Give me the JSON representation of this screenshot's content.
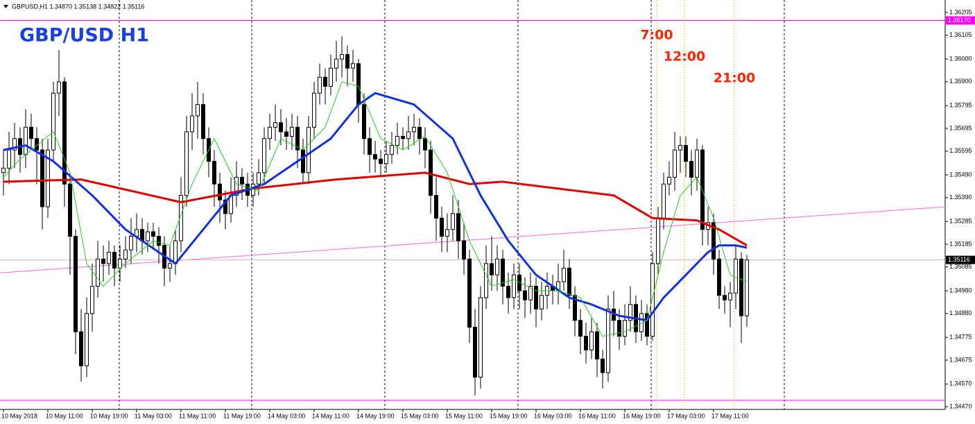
{
  "chart_data": {
    "type": "candlestick",
    "header": "GBPUSD,H1  1.34870 1.35138 1.34822 1.35116",
    "title": "GBP/USD H1",
    "categories": [
      "10 May 2018",
      null,
      null,
      null,
      null,
      null,
      null,
      null,
      "10 May 11:00",
      null,
      null,
      null,
      null,
      null,
      null,
      null,
      "10 May 19:00",
      null,
      null,
      null,
      null,
      null,
      null,
      null,
      "11 May 03:00",
      null,
      null,
      null,
      null,
      null,
      null,
      null,
      "11 May 11:00",
      null,
      null,
      null,
      null,
      null,
      null,
      null,
      "11 May 19:00",
      null,
      null,
      null,
      null,
      null,
      null,
      null,
      "14 May 03:00",
      null,
      null,
      null,
      null,
      null,
      null,
      null,
      "14 May 11:00",
      null,
      null,
      null,
      null,
      null,
      null,
      null,
      "14 May 19:00",
      null,
      null,
      null,
      null,
      null,
      null,
      null,
      "15 May 03:00",
      null,
      null,
      null,
      null,
      null,
      null,
      null,
      "15 May 11:00",
      null,
      null,
      null,
      null,
      null,
      null,
      null,
      "15 May 19:00",
      null,
      null,
      null,
      null,
      null,
      null,
      null,
      "16 May 03:00",
      null,
      null,
      null,
      null,
      null,
      null,
      null,
      "16 May 11:00",
      null,
      null,
      null,
      null,
      null,
      null,
      null,
      "16 May 19:00",
      null,
      null,
      null,
      null,
      null,
      null,
      null,
      "17 May 03:00",
      null,
      null,
      null,
      null,
      null,
      null,
      null,
      "17 May 11:00",
      null,
      null,
      null,
      null,
      null,
      null
    ],
    "open": [
      1.355,
      1.3552,
      1.356,
      1.3565,
      1.3558,
      1.357,
      1.3565,
      1.356,
      1.3535,
      1.356,
      1.3585,
      1.359,
      1.3545,
      1.3522,
      1.348,
      1.3465,
      1.3488,
      1.35,
      1.3512,
      1.351,
      1.3515,
      1.3508,
      1.3512,
      1.3516,
      1.3522,
      1.3525,
      1.352,
      1.3524,
      1.3522,
      1.3518,
      1.3508,
      1.351,
      1.352,
      1.354,
      1.3568,
      1.3575,
      1.358,
      1.3565,
      1.3555,
      1.3545,
      1.3538,
      1.3532,
      1.354,
      1.3548,
      1.3545,
      1.354,
      1.3545,
      1.355,
      1.3565,
      1.357,
      1.3572,
      1.3568,
      1.3566,
      1.357,
      1.356,
      1.355,
      1.357,
      1.3585,
      1.3592,
      1.3588,
      1.3596,
      1.36,
      1.3602,
      1.3596,
      1.3598,
      1.358,
      1.3565,
      1.3558,
      1.3556,
      1.3554,
      1.3558,
      1.3562,
      1.3566,
      1.3565,
      1.3568,
      1.357,
      1.3565,
      1.356,
      1.354,
      1.353,
      1.3522,
      1.3525,
      1.3532,
      1.352,
      1.3512,
      1.3482,
      1.346,
      1.3495,
      1.351,
      1.3505,
      1.3512,
      1.35,
      1.3495,
      1.3505,
      1.3498,
      1.3494,
      1.35,
      1.349,
      1.3496,
      1.35,
      1.3498,
      1.3502,
      1.3508,
      1.3496,
      1.3485,
      1.3478,
      1.3472,
      1.348,
      1.3468,
      1.3462,
      1.349,
      1.3485,
      1.3478,
      1.3485,
      1.3492,
      1.348,
      1.3488,
      1.3478,
      1.351,
      1.353,
      1.3545,
      1.3548,
      1.356,
      1.3562,
      1.3555,
      1.3548,
      1.356,
      1.3525,
      1.3528,
      1.3512,
      1.3496,
      1.3494,
      1.3497,
      1.3512,
      1.3487
    ],
    "high": [
      1.356,
      1.3568,
      1.3572,
      1.357,
      1.3578,
      1.3576,
      1.357,
      1.3565,
      1.3565,
      1.359,
      1.3604,
      1.3592,
      1.355,
      1.3525,
      1.349,
      1.3495,
      1.351,
      1.352,
      1.3518,
      1.352,
      1.3518,
      1.3518,
      1.3522,
      1.353,
      1.3532,
      1.353,
      1.3528,
      1.3528,
      1.3526,
      1.3522,
      1.3518,
      1.3525,
      1.3548,
      1.3575,
      1.3585,
      1.359,
      1.3585,
      1.357,
      1.356,
      1.355,
      1.3542,
      1.3548,
      1.3555,
      1.3552,
      1.355,
      1.355,
      1.3556,
      1.357,
      1.3576,
      1.358,
      1.3578,
      1.3574,
      1.3576,
      1.3575,
      1.3565,
      1.3575,
      1.359,
      1.3598,
      1.3596,
      1.3602,
      1.3608,
      1.361,
      1.3606,
      1.3604,
      1.36,
      1.3585,
      1.357,
      1.3564,
      1.356,
      1.3564,
      1.3568,
      1.3572,
      1.357,
      1.3575,
      1.3576,
      1.3574,
      1.357,
      1.3564,
      1.3548,
      1.3535,
      1.3532,
      1.354,
      1.3538,
      1.3528,
      1.3516,
      1.349,
      1.35,
      1.3518,
      1.3522,
      1.3518,
      1.3516,
      1.3506,
      1.351,
      1.351,
      1.3504,
      1.3506,
      1.3504,
      1.3502,
      1.3506,
      1.3505,
      1.351,
      1.3516,
      1.3512,
      1.35,
      1.349,
      1.3484,
      1.3486,
      1.3484,
      1.3472,
      1.3496,
      1.3498,
      1.349,
      1.3492,
      1.35,
      1.3496,
      1.3494,
      1.3492,
      1.3515,
      1.3535,
      1.355,
      1.3555,
      1.3568,
      1.3566,
      1.3566,
      1.356,
      1.3565,
      1.3562,
      1.3535,
      1.3532,
      1.3516,
      1.35,
      1.3502,
      1.3518,
      1.3515,
      1.35138
    ],
    "low": [
      1.354,
      1.3545,
      1.3552,
      1.355,
      1.3552,
      1.356,
      1.3545,
      1.3525,
      1.353,
      1.3555,
      1.3575,
      1.3535,
      1.3505,
      1.347,
      1.3458,
      1.346,
      1.348,
      1.3495,
      1.3502,
      1.3505,
      1.35,
      1.3502,
      1.3508,
      1.351,
      1.3515,
      1.3514,
      1.3515,
      1.3516,
      1.351,
      1.35,
      1.3502,
      1.3505,
      1.3515,
      1.3535,
      1.356,
      1.3565,
      1.3558,
      1.3548,
      1.3535,
      1.3528,
      1.3525,
      1.3528,
      1.3535,
      1.3538,
      1.3535,
      1.3535,
      1.354,
      1.3545,
      1.356,
      1.3564,
      1.3562,
      1.356,
      1.356,
      1.3552,
      1.3545,
      1.3545,
      1.3565,
      1.358,
      1.358,
      1.3584,
      1.359,
      1.3592,
      1.3588,
      1.359,
      1.3572,
      1.3558,
      1.355,
      1.355,
      1.3548,
      1.355,
      1.3554,
      1.3558,
      1.356,
      1.356,
      1.3562,
      1.3558,
      1.3552,
      1.3532,
      1.352,
      1.3515,
      1.3515,
      1.352,
      1.3512,
      1.3505,
      1.3475,
      1.3452,
      1.3455,
      1.349,
      1.3498,
      1.3498,
      1.3492,
      1.3488,
      1.349,
      1.349,
      1.3486,
      1.3488,
      1.3482,
      1.3485,
      1.349,
      1.3492,
      1.3492,
      1.3498,
      1.349,
      1.3478,
      1.347,
      1.3466,
      1.3468,
      1.346,
      1.3455,
      1.3458,
      1.3478,
      1.3472,
      1.3474,
      1.348,
      1.3475,
      1.3476,
      1.3474,
      1.3476,
      1.3505,
      1.3525,
      1.354,
      1.3542,
      1.355,
      1.3548,
      1.354,
      1.3542,
      1.3518,
      1.3518,
      1.3505,
      1.349,
      1.3488,
      1.3482,
      1.349,
      1.3475,
      1.34822
    ],
    "close": [
      1.3552,
      1.356,
      1.3565,
      1.3558,
      1.357,
      1.3565,
      1.356,
      1.3535,
      1.356,
      1.3585,
      1.359,
      1.3545,
      1.3522,
      1.348,
      1.3465,
      1.3488,
      1.35,
      1.3512,
      1.351,
      1.3515,
      1.3508,
      1.3512,
      1.3516,
      1.3522,
      1.3525,
      1.352,
      1.3524,
      1.3522,
      1.3518,
      1.3508,
      1.351,
      1.352,
      1.354,
      1.3568,
      1.3575,
      1.358,
      1.3565,
      1.3555,
      1.3545,
      1.3538,
      1.3532,
      1.354,
      1.3548,
      1.3545,
      1.354,
      1.3545,
      1.355,
      1.3565,
      1.357,
      1.3572,
      1.3568,
      1.3566,
      1.357,
      1.356,
      1.355,
      1.357,
      1.3585,
      1.3592,
      1.3588,
      1.3596,
      1.36,
      1.3602,
      1.3596,
      1.3598,
      1.358,
      1.3565,
      1.3558,
      1.3556,
      1.3554,
      1.3558,
      1.3562,
      1.3566,
      1.3565,
      1.3568,
      1.357,
      1.3565,
      1.356,
      1.354,
      1.353,
      1.3522,
      1.3525,
      1.3532,
      1.352,
      1.3512,
      1.3482,
      1.346,
      1.3495,
      1.351,
      1.3505,
      1.3512,
      1.35,
      1.3495,
      1.3505,
      1.3498,
      1.3494,
      1.35,
      1.349,
      1.3496,
      1.35,
      1.3498,
      1.3502,
      1.3508,
      1.3496,
      1.3485,
      1.3478,
      1.3472,
      1.348,
      1.3468,
      1.3462,
      1.349,
      1.3485,
      1.3478,
      1.3485,
      1.3492,
      1.348,
      1.3488,
      1.3478,
      1.351,
      1.353,
      1.3545,
      1.3548,
      1.356,
      1.3562,
      1.3555,
      1.3548,
      1.356,
      1.3525,
      1.3528,
      1.3512,
      1.3496,
      1.3494,
      1.3497,
      1.3512,
      1.3487,
      1.35116
    ],
    "ylim": [
      1.34458,
      1.3626
    ],
    "yticks": [
      1.36205,
      1.36105,
      {
        "value": 1.36,
        "label": "1.36000"
      },
      {
        "value": 1.359,
        "label": "1.35900"
      },
      1.35795,
      1.35695,
      1.35595,
      {
        "value": 1.3549,
        "label": "1.35490"
      },
      {
        "value": 1.3539,
        "label": "1.35390"
      },
      1.35285,
      1.35185,
      1.35085,
      {
        "value": 1.3498,
        "label": "1.34980"
      },
      {
        "value": 1.3488,
        "label": "1.34880"
      },
      1.34775,
      1.34675,
      {
        "value": 1.3457,
        "label": "1.34570"
      },
      {
        "value": 1.3447,
        "label": "1.34470"
      }
    ],
    "overlays": [
      {
        "color": "#e00000",
        "line_width": 3,
        "x": [
          0,
          14,
          32,
          45,
          60,
          76,
          84,
          90,
          110,
          117,
          125,
          129,
          134
        ],
        "values": [
          1.3546,
          1.3547,
          1.3537,
          1.3543,
          1.3547,
          1.355,
          1.3545,
          1.3546,
          1.354,
          1.353,
          1.3529,
          1.3525,
          1.3518
        ]
      },
      {
        "color": "#1030e0",
        "line_width": 3,
        "x": [
          0,
          4,
          9,
          16,
          22,
          28,
          31,
          36,
          41,
          47,
          53,
          59,
          64,
          67,
          74,
          81,
          86,
          91,
          96,
          102,
          106,
          111,
          116,
          119,
          123,
          127,
          129,
          132,
          134
        ],
        "values": [
          1.356,
          1.3562,
          1.3555,
          1.354,
          1.3525,
          1.3515,
          1.351,
          1.3525,
          1.354,
          1.3545,
          1.3555,
          1.3565,
          1.358,
          1.3585,
          1.358,
          1.3565,
          1.354,
          1.352,
          1.3505,
          1.3495,
          1.3492,
          1.3487,
          1.3485,
          1.3495,
          1.3505,
          1.3515,
          1.3518,
          1.3518,
          1.3517
        ]
      },
      {
        "color": "#22cc22",
        "line_width": 1,
        "x": [
          0,
          3,
          6,
          9,
          12,
          15,
          18,
          22,
          27,
          30,
          34,
          38,
          42,
          46,
          50,
          54,
          58,
          61,
          64,
          68,
          72,
          76,
          80,
          84,
          88,
          92,
          96,
          100,
          104,
          108,
          112,
          116,
          119,
          122,
          125,
          128,
          131,
          134
        ],
        "values": [
          1.3548,
          1.3556,
          1.3562,
          1.3568,
          1.355,
          1.351,
          1.35,
          1.351,
          1.352,
          1.3518,
          1.3545,
          1.3565,
          1.3545,
          1.3542,
          1.3565,
          1.356,
          1.357,
          1.359,
          1.3588,
          1.3565,
          1.356,
          1.3566,
          1.355,
          1.352,
          1.35,
          1.3503,
          1.3498,
          1.3498,
          1.3495,
          1.3478,
          1.348,
          1.3485,
          1.3515,
          1.354,
          1.3548,
          1.353,
          1.3505,
          1.3502
        ]
      }
    ],
    "trendline": {
      "color": "#ff66cc",
      "x": [
        -0.6,
        169.8
      ],
      "values": [
        1.35059,
        1.3535
      ]
    },
    "hlines": [
      {
        "value": 1.3617,
        "label": "1.36170",
        "color": "#ff00ff"
      },
      {
        "value": 1.34498,
        "color": "#ff00ff"
      }
    ],
    "price_line_color": "#e8b0cc",
    "vlines": [
      {
        "x": 117.75,
        "label": "7:00"
      },
      {
        "x": 122.75,
        "label": "12:00"
      },
      {
        "x": 131.75,
        "label": "21:00"
      }
    ],
    "vline_color": "#ffc000"
  }
}
